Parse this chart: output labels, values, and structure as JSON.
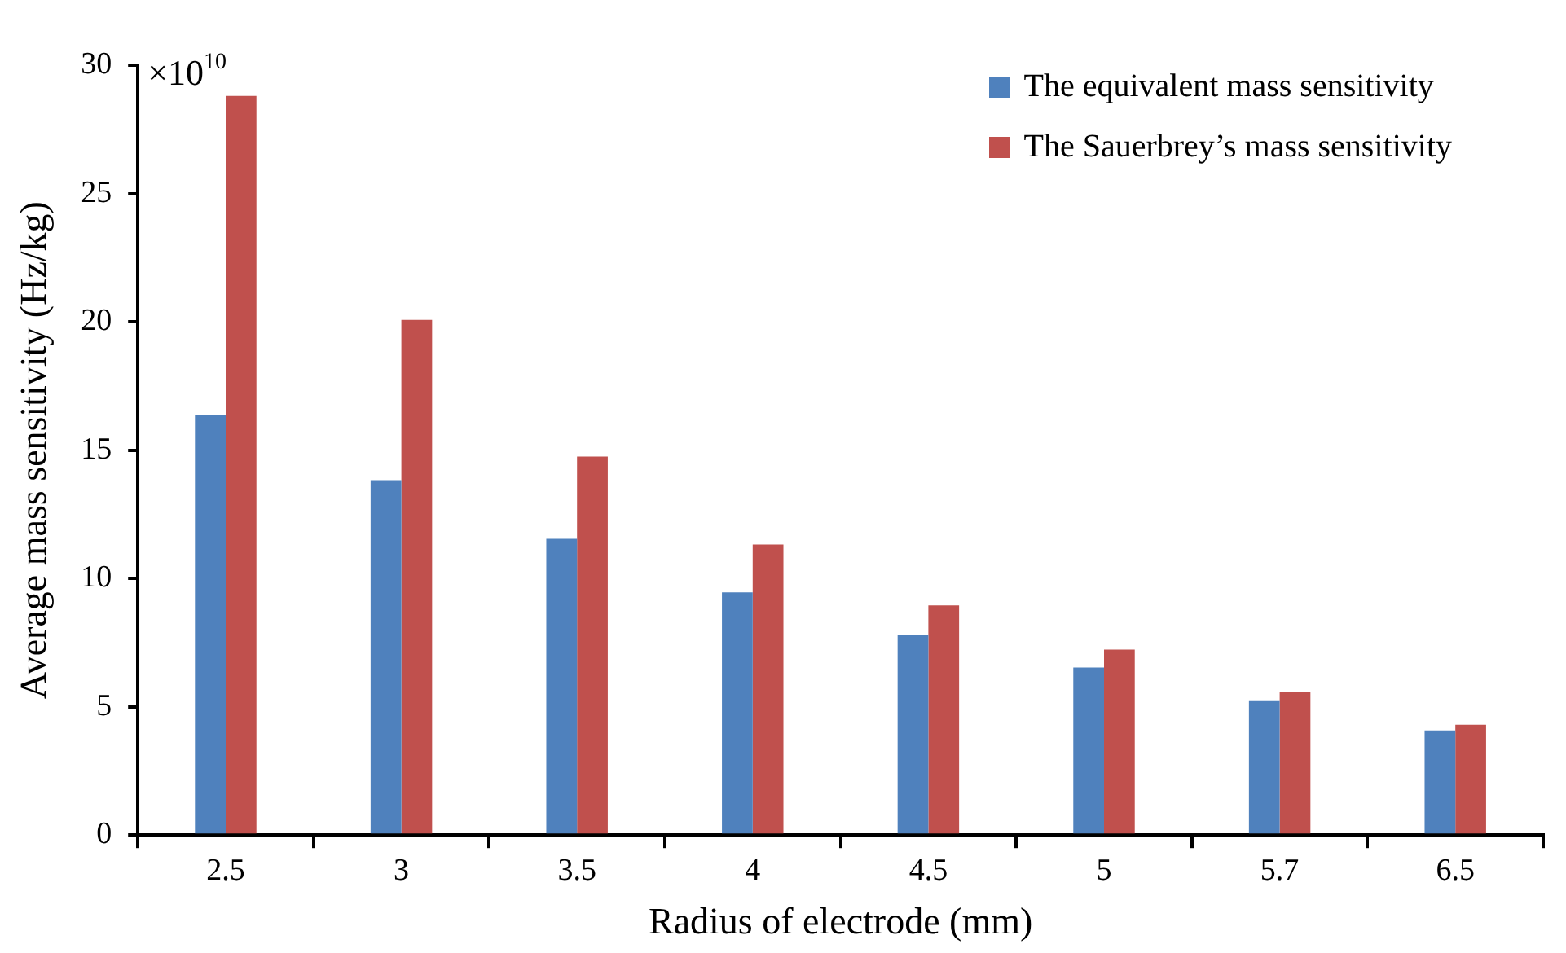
{
  "chart_data": {
    "type": "bar",
    "xlabel": "Radius of electrode (mm)",
    "ylabel": "Average mass sensitivity (Hz/kg)",
    "annotations": [
      "×10$^{10}$"
    ],
    "categories": [
      "2.5",
      "3",
      "3.5",
      "4",
      "4.5",
      "5",
      "5.7",
      "6.5"
    ],
    "series": [
      {
        "name": "The equivalent mass sensitivity",
        "color": "#4f81bd",
        "values": [
          16.35,
          13.83,
          11.54,
          9.46,
          7.81,
          6.53,
          5.22,
          4.08
        ]
      },
      {
        "name": "The Sauerbrey’s mass sensitivity",
        "color": "#c0504d",
        "values": [
          28.8,
          20.07,
          14.75,
          11.32,
          8.95,
          7.23,
          5.59,
          4.3
        ]
      }
    ],
    "ylim": [
      0,
      30
    ],
    "yticks": [
      0,
      5,
      10,
      15,
      20,
      25,
      30
    ],
    "grid": false,
    "legend": "top right"
  }
}
